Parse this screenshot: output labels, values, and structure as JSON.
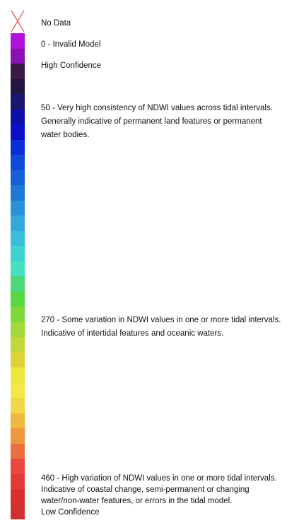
{
  "legend": {
    "nodata_label": "No Data",
    "invalid_label": "0 - Invalid Model",
    "high_conf_label": "High Confidence",
    "low_conf_label": "Low Confidence",
    "stop_50": {
      "value_text": "50 - Very high consistency of NDWI values across tidal intervals.",
      "desc_lines": [
        "Generally indicative of permanent land features or permanent",
        "water bodies."
      ]
    },
    "stop_270": {
      "value_text": "270 - Some variation in NDWI values in one or more tidal intervals.",
      "desc_lines": [
        "Indicative of intertidal features and oceanic waters."
      ]
    },
    "stop_460": {
      "value_text": "460 - High variation of NDWI values in one or more tidal intervals.",
      "desc_lines": [
        "Indicative of coastal change, semi-permanent or changing",
        "water/non-water features, or errors in the tidal model."
      ]
    }
  },
  "colors": {
    "nodata_cross": "#e8403a",
    "invalid": "#b012d8",
    "high_confidence": "#2a1638",
    "ramp": [
      "#b012d8",
      "#8a12b5",
      "#3a1a48",
      "#241442",
      "#1a1670",
      "#0e0ea8",
      "#0a10c8",
      "#0c2ed8",
      "#0f4ad8",
      "#1560d6",
      "#1e78d6",
      "#2a90d8",
      "#34a8dc",
      "#38bed8",
      "#3cd4d2",
      "#44e0c0",
      "#4cd878",
      "#58d840",
      "#7ed83a",
      "#a2d838",
      "#c2d838",
      "#ded238",
      "#f0e640",
      "#f4e848",
      "#f2d848",
      "#f0b840",
      "#ee9840",
      "#ea7040",
      "#e84840",
      "#e23a36",
      "#d83030",
      "#d03030"
    ]
  }
}
